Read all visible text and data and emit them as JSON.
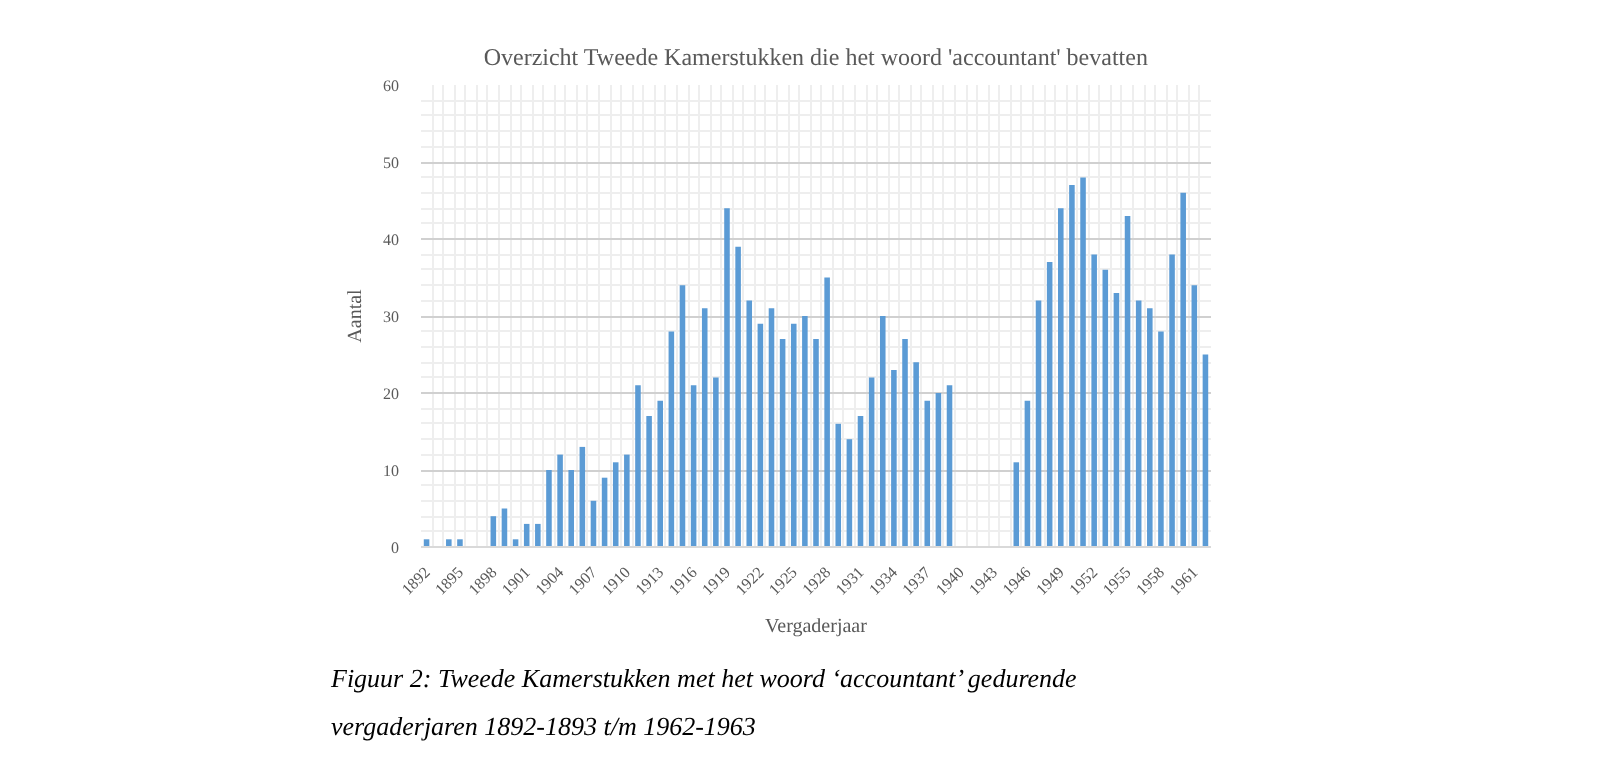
{
  "chart_data": {
    "type": "bar",
    "title": "Overzicht Tweede Kamerstukken die het woord 'accountant' bevatten",
    "xlabel": "Vergaderjaar",
    "ylabel": "Aantal",
    "categories": [
      "1892",
      null,
      null,
      "1895",
      null,
      null,
      "1898",
      null,
      null,
      "1901",
      null,
      null,
      "1904",
      null,
      null,
      "1907",
      null,
      null,
      "1910",
      null,
      null,
      "1913",
      null,
      null,
      "1916",
      null,
      null,
      "1919",
      null,
      null,
      "1922",
      null,
      null,
      "1925",
      null,
      null,
      "1928",
      null,
      null,
      "1931",
      null,
      null,
      "1934",
      null,
      null,
      "1937",
      null,
      null,
      "1940",
      null,
      null,
      "1943",
      null,
      null,
      "1946",
      null,
      null,
      "1949",
      null,
      null,
      "1952",
      null,
      null,
      "1955",
      null,
      null,
      "1958",
      null,
      null,
      "1961",
      null
    ],
    "values": [
      1,
      0,
      1,
      1,
      0,
      0,
      4,
      5,
      1,
      3,
      3,
      10,
      12,
      10,
      13,
      6,
      9,
      11,
      12,
      21,
      17,
      19,
      28,
      34,
      21,
      31,
      22,
      44,
      39,
      32,
      29,
      31,
      27,
      29,
      30,
      27,
      35,
      16,
      14,
      17,
      22,
      30,
      23,
      27,
      24,
      19,
      20,
      21,
      0,
      0,
      0,
      0,
      0,
      11,
      19,
      32,
      37,
      44,
      47,
      48,
      38,
      36,
      33,
      43,
      32,
      31,
      28,
      38,
      46,
      34,
      25
    ],
    "color": "#5b9bd5",
    "ylim": [
      0,
      60
    ],
    "yticks": [
      0,
      10,
      20,
      30,
      40,
      50,
      60
    ],
    "grid": true,
    "annotations": [
      "Figuur 2: Tweede Kamerstukken met het woord ‘accountant’ gedurende vergaderjaren 1892-1893 t/m 1962-1963"
    ]
  }
}
